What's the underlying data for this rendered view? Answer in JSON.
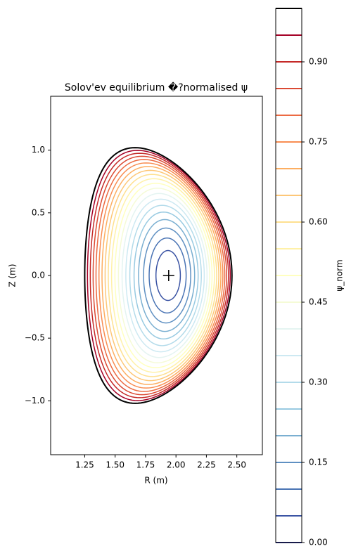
{
  "chart_data": {
    "type": "contour",
    "title": "Solov'ev equilibrium �?normalised ψ",
    "xlabel": "R (m)",
    "ylabel": "Z (m)",
    "colorbar_label": "ψ_norm",
    "xlim": [
      0.97,
      2.71
    ],
    "xticks": [
      1.25,
      {
        "value": 1.5,
        "label": "1.50"
      },
      1.75,
      {
        "value": 2.0,
        "label": "2.00"
      },
      2.25,
      {
        "value": 2.5,
        "label": "2.50"
      }
    ],
    "ylim": [
      -1.43,
      1.43
    ],
    "yticks": [
      {
        "value": -1.0,
        "label": "−1.0"
      },
      {
        "value": -0.5,
        "label": "−0.5"
      },
      {
        "value": 0.0,
        "label": "0.0"
      },
      0.5,
      {
        "value": 1.0,
        "label": "1.0"
      }
    ],
    "clim": [
      0,
      1
    ],
    "cticks": [
      {
        "value": 0,
        "label": "0.00"
      },
      0.15,
      {
        "value": 0.3,
        "label": "0.30"
      },
      0.45,
      {
        "value": 0.6,
        "label": "0.60"
      },
      0.75,
      {
        "value": 0.9,
        "label": "0.90"
      }
    ],
    "levels": [
      0,
      0.05,
      0.1,
      0.15,
      0.2,
      0.25,
      0.3,
      0.35,
      0.4,
      0.45,
      0.5,
      0.55,
      0.6,
      0.65,
      0.7,
      0.75,
      0.8,
      0.85,
      0.9,
      0.95,
      1.0
    ],
    "colors": [
      "#313695",
      "#3b54a4",
      "#4a74b4",
      "#5f90c2",
      "#7aafd1",
      "#98cae1",
      "#b3dbea",
      "#cde9f2",
      "#e4f4f1",
      "#f5fbd6",
      "#ffffbf",
      "#fff1a8",
      "#fee090",
      "#fdc778",
      "#fdae61",
      "#f88d52",
      "#ec6a42",
      "#db4a34",
      "#c52a28",
      "#a50026",
      "#000000"
    ],
    "magnetic_axis": {
      "R": 1.94,
      "Z": 0
    }
  }
}
